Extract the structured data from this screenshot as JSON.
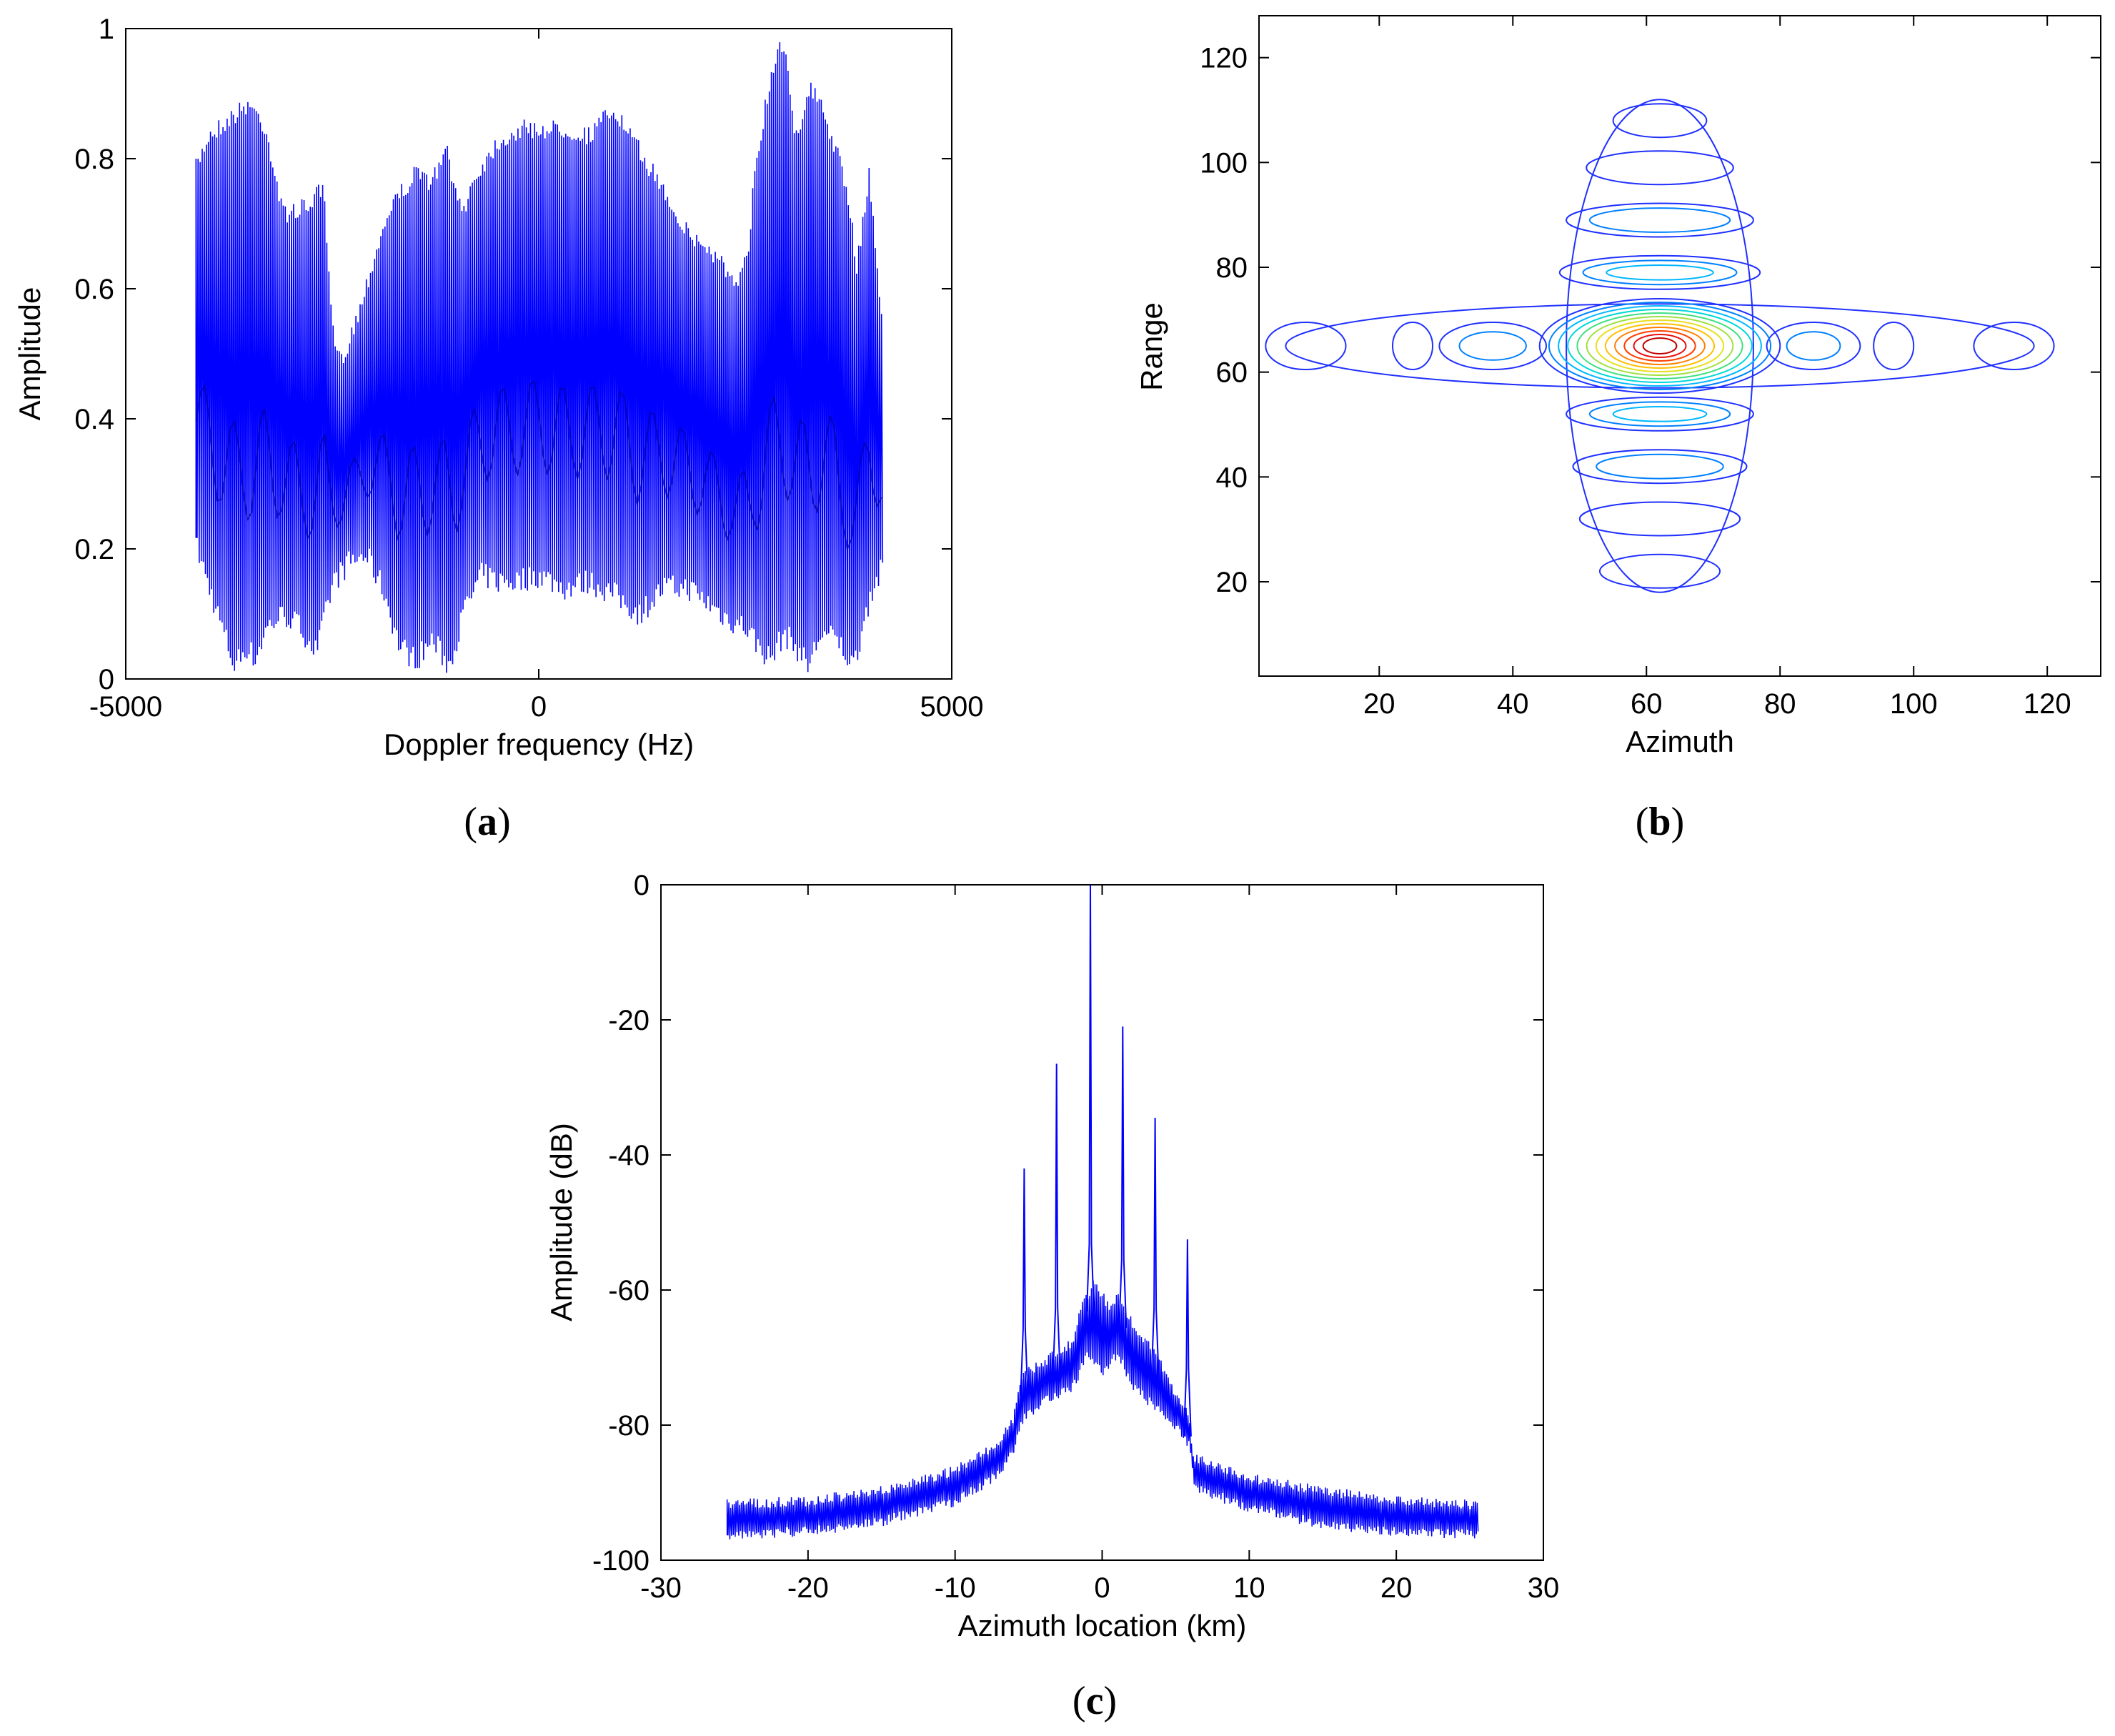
{
  "chart_data": [
    {
      "id": "a",
      "type": "line",
      "panel_label": "a",
      "xlabel": "Doppler frequency (Hz)",
      "ylabel": "Amplitude",
      "xlim": [
        -5000,
        5000
      ],
      "ylim": [
        0,
        1
      ],
      "xticks": [
        -5000,
        0,
        5000
      ],
      "yticks": [
        0,
        0.2,
        0.4,
        0.6,
        0.8,
        1
      ],
      "grid": false,
      "color": "#0000ff",
      "signal_span": [
        -4150,
        4150
      ],
      "upper_envelope": {
        "x": [
          -4150,
          -4000,
          -3800,
          -3500,
          -3300,
          -3100,
          -2800,
          -2700,
          -2600,
          -2500,
          -2400,
          -2200,
          -2000,
          -1800,
          -1500,
          -1300,
          -1200,
          -1100,
          -1000,
          -900,
          -800,
          -500,
          -200,
          0,
          300,
          600,
          900,
          1200,
          1500,
          1800,
          2000,
          2200,
          2400,
          2550,
          2600,
          2750,
          2900,
          3000,
          3100,
          3300,
          3400,
          3600,
          3750,
          3850,
          4000,
          4150
        ],
        "y": [
          0.8,
          0.85,
          0.87,
          0.9,
          0.86,
          0.73,
          0.74,
          0.76,
          0.76,
          0.55,
          0.5,
          0.57,
          0.66,
          0.74,
          0.79,
          0.78,
          0.8,
          0.83,
          0.75,
          0.74,
          0.78,
          0.84,
          0.86,
          0.86,
          0.86,
          0.85,
          0.89,
          0.83,
          0.77,
          0.7,
          0.68,
          0.66,
          0.61,
          0.68,
          0.79,
          0.9,
          0.99,
          0.98,
          0.85,
          0.92,
          0.9,
          0.83,
          0.75,
          0.65,
          0.79,
          0.58
        ]
      },
      "lower_envelope": {
        "x": [
          -4150,
          -4000,
          -3850,
          -3700,
          -3550,
          -3450,
          -3300,
          -3100,
          -2900,
          -2700,
          -2500,
          -2300,
          -2100,
          -1900,
          -1700,
          -1500,
          -1300,
          -1100,
          -900,
          -700,
          -500,
          -300,
          0,
          300,
          600,
          900,
          1200,
          1500,
          1800,
          2100,
          2300,
          2500,
          2650,
          2800,
          2950,
          3100,
          3250,
          3400,
          3600,
          3800,
          4000,
          4150
        ],
        "y": [
          0.18,
          0.12,
          0.06,
          0.0,
          0.03,
          0.01,
          0.06,
          0.08,
          0.06,
          0.02,
          0.13,
          0.16,
          0.17,
          0.12,
          0.03,
          0.01,
          0.04,
          0.0,
          0.09,
          0.14,
          0.13,
          0.13,
          0.14,
          0.12,
          0.13,
          0.11,
          0.08,
          0.12,
          0.12,
          0.09,
          0.07,
          0.06,
          0.03,
          0.01,
          0.05,
          0.03,
          0.0,
          0.05,
          0.04,
          0.0,
          0.11,
          0.15
        ]
      }
    },
    {
      "id": "b",
      "type": "contour",
      "panel_label": "b",
      "xlabel": "Azimuth",
      "ylabel": "Range",
      "xlim": [
        2,
        128
      ],
      "ylim": [
        2,
        128
      ],
      "xticks": [
        20,
        40,
        60,
        80,
        100,
        120
      ],
      "yticks": [
        20,
        40,
        60,
        80,
        100,
        120
      ],
      "grid": false,
      "peak": {
        "azimuth": 62,
        "range": 65
      },
      "levels": 12,
      "level_colors": [
        "#2030ff",
        "#0080ff",
        "#00b8ff",
        "#00d8d8",
        "#40e080",
        "#a0e040",
        "#e8e020",
        "#ffc000",
        "#ff8000",
        "#ff4000",
        "#e81010",
        "#c00000"
      ],
      "range_sidelobes": [
        {
          "range": 108,
          "half_width": 7,
          "rings": 1
        },
        {
          "range": 99,
          "half_width": 11,
          "rings": 1
        },
        {
          "range": 89,
          "half_width": 14,
          "rings": 2
        },
        {
          "range": 79,
          "half_width": 15,
          "rings": 3
        },
        {
          "range": 52,
          "half_width": 14,
          "rings": 3
        },
        {
          "range": 42,
          "half_width": 13,
          "rings": 2
        },
        {
          "range": 32,
          "half_width": 12,
          "rings": 1
        },
        {
          "range": 22,
          "half_width": 9,
          "rings": 1
        }
      ],
      "azimuth_sidelobes": [
        {
          "azimuth": 9,
          "half_width": 6,
          "rings": 1
        },
        {
          "azimuth": 25,
          "half_width": 3,
          "rings": 1
        },
        {
          "azimuth": 37,
          "half_width": 8,
          "rings": 2
        },
        {
          "azimuth": 85,
          "half_width": 7,
          "rings": 2
        },
        {
          "azimuth": 97,
          "half_width": 3,
          "rings": 1
        },
        {
          "azimuth": 115,
          "half_width": 6,
          "rings": 1
        }
      ]
    },
    {
      "id": "c",
      "type": "line",
      "panel_label": "c",
      "xlabel": "Azimuth location (km)",
      "ylabel": "Amplitude (dB)",
      "xlim": [
        -30,
        30
      ],
      "ylim": [
        -100,
        0
      ],
      "xticks": [
        -30,
        -20,
        -10,
        0,
        10,
        20,
        30
      ],
      "yticks": [
        -100,
        -80,
        -60,
        -40,
        -20,
        0
      ],
      "grid": false,
      "color": "#0000ff",
      "signal_span": [
        -25.5,
        25.5
      ],
      "peaks": [
        {
          "x": -5.3,
          "y": -42
        },
        {
          "x": -3.1,
          "y": -26.5
        },
        {
          "x": -0.8,
          "y": 0
        },
        {
          "x": 1.4,
          "y": -21
        },
        {
          "x": 3.6,
          "y": -34.5
        },
        {
          "x": 5.8,
          "y": -52.5
        }
      ],
      "upper_envelope": {
        "x": [
          -25.5,
          -20,
          -15,
          -10,
          -7,
          -6,
          -5.5,
          -4,
          -2,
          -1.5,
          -0.5,
          0.5,
          1,
          2,
          4,
          5,
          5.9,
          6.2,
          10,
          15,
          20,
          25.5
        ],
        "y": [
          -91,
          -90.5,
          -89,
          -86,
          -82,
          -78,
          -72,
          -70,
          -67,
          -62,
          -58,
          -62,
          -60,
          -64,
          -70,
          -75,
          -78,
          -84,
          -87,
          -89,
          -90.5,
          -91
        ]
      },
      "lower_envelope": {
        "x": [
          -25.5,
          -20,
          -15,
          -10,
          -7,
          -6,
          -5.5,
          -4,
          -2,
          -1,
          0,
          1,
          2,
          3,
          4,
          5,
          5.9,
          6.2,
          10,
          15,
          20,
          25.5
        ],
        "y": [
          -97,
          -96.5,
          -95,
          -92,
          -88,
          -84,
          -80,
          -77,
          -75,
          -70,
          -73,
          -70,
          -75,
          -77,
          -79,
          -81,
          -84,
          -90,
          -93,
          -95.5,
          -96.5,
          -97
        ]
      }
    }
  ]
}
